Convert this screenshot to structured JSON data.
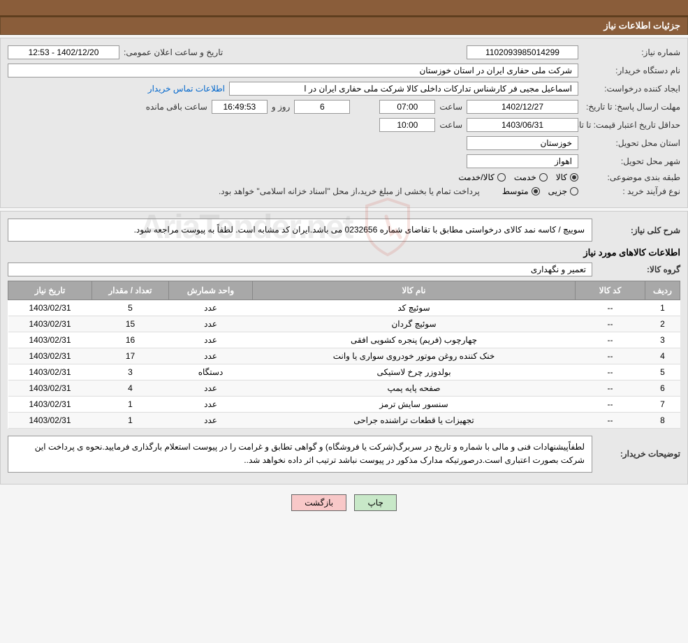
{
  "header": {
    "title": "جزئیات اطلاعات نیاز"
  },
  "fields": {
    "need_number_label": "شماره نیاز:",
    "need_number": "1102093985014299",
    "announce_label": "تاریخ و ساعت اعلان عمومی:",
    "announce_value": "1402/12/20 - 12:53",
    "buyer_org_label": "نام دستگاه خریدار:",
    "buyer_org": "شرکت ملی حفاری ایران در استان خوزستان",
    "requester_label": "ایجاد کننده درخواست:",
    "requester": "اسماعیل مجیی فر کارشناس تدارکات داخلی کالا شرکت ملی حفاری ایران در ا",
    "contact_link": "اطلاعات تماس خریدار",
    "deadline_label": "مهلت ارسال پاسخ: تا تاریخ:",
    "deadline_date": "1402/12/27",
    "time_label": "ساعت",
    "deadline_time": "07:00",
    "days_value": "6",
    "days_label": "روز و",
    "countdown": "16:49:53",
    "remaining_label": "ساعت باقی مانده",
    "validity_label": "حداقل تاریخ اعتبار قیمت: تا تاریخ:",
    "validity_date": "1403/06/31",
    "validity_time": "10:00",
    "province_label": "استان محل تحویل:",
    "province": "خوزستان",
    "city_label": "شهر محل تحویل:",
    "city": "اهواز",
    "category_label": "طبقه بندی موضوعی:",
    "cat_goods": "کالا",
    "cat_service": "خدمت",
    "cat_goods_service": "کالا/خدمت",
    "purchase_type_label": "نوع فرآیند خرید :",
    "pt_partial": "جزیی",
    "pt_medium": "متوسط",
    "purchase_note": "پرداخت تمام یا بخشی از مبلغ خرید،از محل \"اسناد خزانه اسلامی\" خواهد بود.",
    "need_desc_label": "شرح کلی نیاز:",
    "need_desc": "سوییچ / کاسه نمد کالای درخواستی مطابق با تقاضای شماره 0232656 می باشد.ایران کد مشابه است. لطفاً به پیوست مراجعه شود.",
    "goods_info_title": "اطلاعات کالاهای مورد نیاز",
    "goods_group_label": "گروه کالا:",
    "goods_group": "تعمیر و نگهداری",
    "buyer_notes_label": "توضیحات خریدار:",
    "buyer_notes": "لطفاًپیشنهادات فنی و مالی با شماره و تاریخ در سربرگ(شرکت یا فروشگاه) و گواهی تطابق و غرامت را در پیوست استعلام بارگذاری فرمایید.نحوه ی پرداخت این شرکت بصورت اعتباری است.درصورتیکه مدارک مذکور در پیوست نباشد ترتیب اثر داده نخواهد شد.."
  },
  "table": {
    "headers": {
      "row": "ردیف",
      "code": "کد کالا",
      "name": "نام کالا",
      "unit": "واحد شمارش",
      "qty": "تعداد / مقدار",
      "date": "تاریخ نیاز"
    },
    "rows": [
      {
        "row": "1",
        "code": "--",
        "name": "سوئیچ کد",
        "unit": "عدد",
        "qty": "5",
        "date": "1403/02/31"
      },
      {
        "row": "2",
        "code": "--",
        "name": "سوئیچ گردان",
        "unit": "عدد",
        "qty": "15",
        "date": "1403/02/31"
      },
      {
        "row": "3",
        "code": "--",
        "name": "چهارچوب (فریم) پنجره کشویی افقی",
        "unit": "عدد",
        "qty": "16",
        "date": "1403/02/31"
      },
      {
        "row": "4",
        "code": "--",
        "name": "خنک کننده روغن موتور خودروی سواری یا وانت",
        "unit": "عدد",
        "qty": "17",
        "date": "1403/02/31"
      },
      {
        "row": "5",
        "code": "--",
        "name": "بولدوزر چرخ لاستیکی",
        "unit": "دستگاه",
        "qty": "3",
        "date": "1403/02/31"
      },
      {
        "row": "6",
        "code": "--",
        "name": "صفحه پایه پمپ",
        "unit": "عدد",
        "qty": "4",
        "date": "1403/02/31"
      },
      {
        "row": "7",
        "code": "--",
        "name": "سنسور سایش ترمز",
        "unit": "عدد",
        "qty": "1",
        "date": "1403/02/31"
      },
      {
        "row": "8",
        "code": "--",
        "name": "تجهیزات یا قطعات تراشنده جراحی",
        "unit": "عدد",
        "qty": "1",
        "date": "1403/02/31"
      }
    ]
  },
  "buttons": {
    "print": "چاپ",
    "back": "بازگشت"
  },
  "watermark": {
    "text": "AriaTender.net"
  },
  "colors": {
    "header_bg": "#8a5d3a",
    "body_bg": "#e8e8e8",
    "table_header_bg": "#a8a8a8",
    "btn_print_bg": "#c8e8c8",
    "btn_back_bg": "#f8c8c8",
    "watermark_red": "#d04a3a"
  }
}
